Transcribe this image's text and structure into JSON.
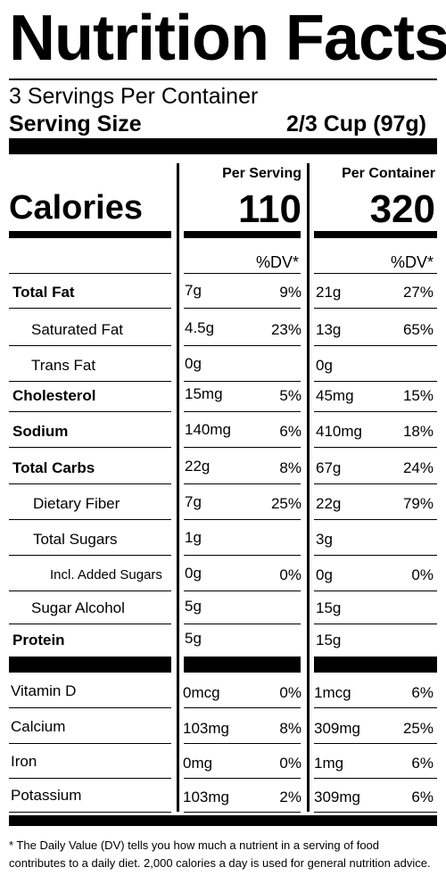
{
  "title": "Nutrition Facts",
  "servings_per_container": "3 Servings Per Container",
  "serving_size_label": "Serving Size",
  "serving_size_value": "2/3 Cup (97g)",
  "columns": {
    "per_serving": "Per Serving",
    "per_container": "Per Container"
  },
  "calories": {
    "label": "Calories",
    "per_serving": "110",
    "per_container": "320"
  },
  "dv_header": "%DV*",
  "nutrients": [
    {
      "label": "Total Fat",
      "serving_amount": "7g",
      "serving_dv": "9%",
      "container_amount": "21g",
      "container_dv": "27%"
    },
    {
      "label": "Saturated Fat",
      "serving_amount": "4.5g",
      "serving_dv": "23%",
      "container_amount": "13g",
      "container_dv": "65%"
    },
    {
      "label": "Trans Fat",
      "serving_amount": "0g",
      "serving_dv": "",
      "container_amount": "0g",
      "container_dv": ""
    },
    {
      "label": "Cholesterol",
      "serving_amount": "15mg",
      "serving_dv": "5%",
      "container_amount": "45mg",
      "container_dv": "15%"
    },
    {
      "label": "Sodium",
      "serving_amount": "140mg",
      "serving_dv": "6%",
      "container_amount": "410mg",
      "container_dv": "18%"
    },
    {
      "label": "Total Carbs",
      "serving_amount": "22g",
      "serving_dv": "8%",
      "container_amount": "67g",
      "container_dv": "24%"
    },
    {
      "label": "Dietary Fiber",
      "serving_amount": "7g",
      "serving_dv": "25%",
      "container_amount": "22g",
      "container_dv": "79%"
    },
    {
      "label": "Total Sugars",
      "serving_amount": "1g",
      "serving_dv": "",
      "container_amount": "3g",
      "container_dv": ""
    },
    {
      "label": "Incl. Added Sugars",
      "serving_amount": "0g",
      "serving_dv": "0%",
      "container_amount": "0g",
      "container_dv": "0%"
    },
    {
      "label": "Sugar Alcohol",
      "serving_amount": "5g",
      "serving_dv": "",
      "container_amount": "15g",
      "container_dv": ""
    },
    {
      "label": "Protein",
      "serving_amount": "5g",
      "serving_dv": "",
      "container_amount": "15g",
      "container_dv": ""
    }
  ],
  "vitamins": [
    {
      "label": "Vitamin D",
      "serving_amount": "0mcg",
      "serving_dv": "0%",
      "container_amount": "1mcg",
      "container_dv": "6%"
    },
    {
      "label": "Calcium",
      "serving_amount": "103mg",
      "serving_dv": "8%",
      "container_amount": "309mg",
      "container_dv": "25%"
    },
    {
      "label": "Iron",
      "serving_amount": "0mg",
      "serving_dv": "0%",
      "container_amount": "1mg",
      "container_dv": "6%"
    },
    {
      "label": "Potassium",
      "serving_amount": "103mg",
      "serving_dv": "2%",
      "container_amount": "309mg",
      "container_dv": "6%"
    }
  ],
  "footnote": "* The Daily Value (DV) tells you how much a nutrient in a serving of food contributes to a daily diet. 2,000 calories a day is used for general nutrition advice."
}
